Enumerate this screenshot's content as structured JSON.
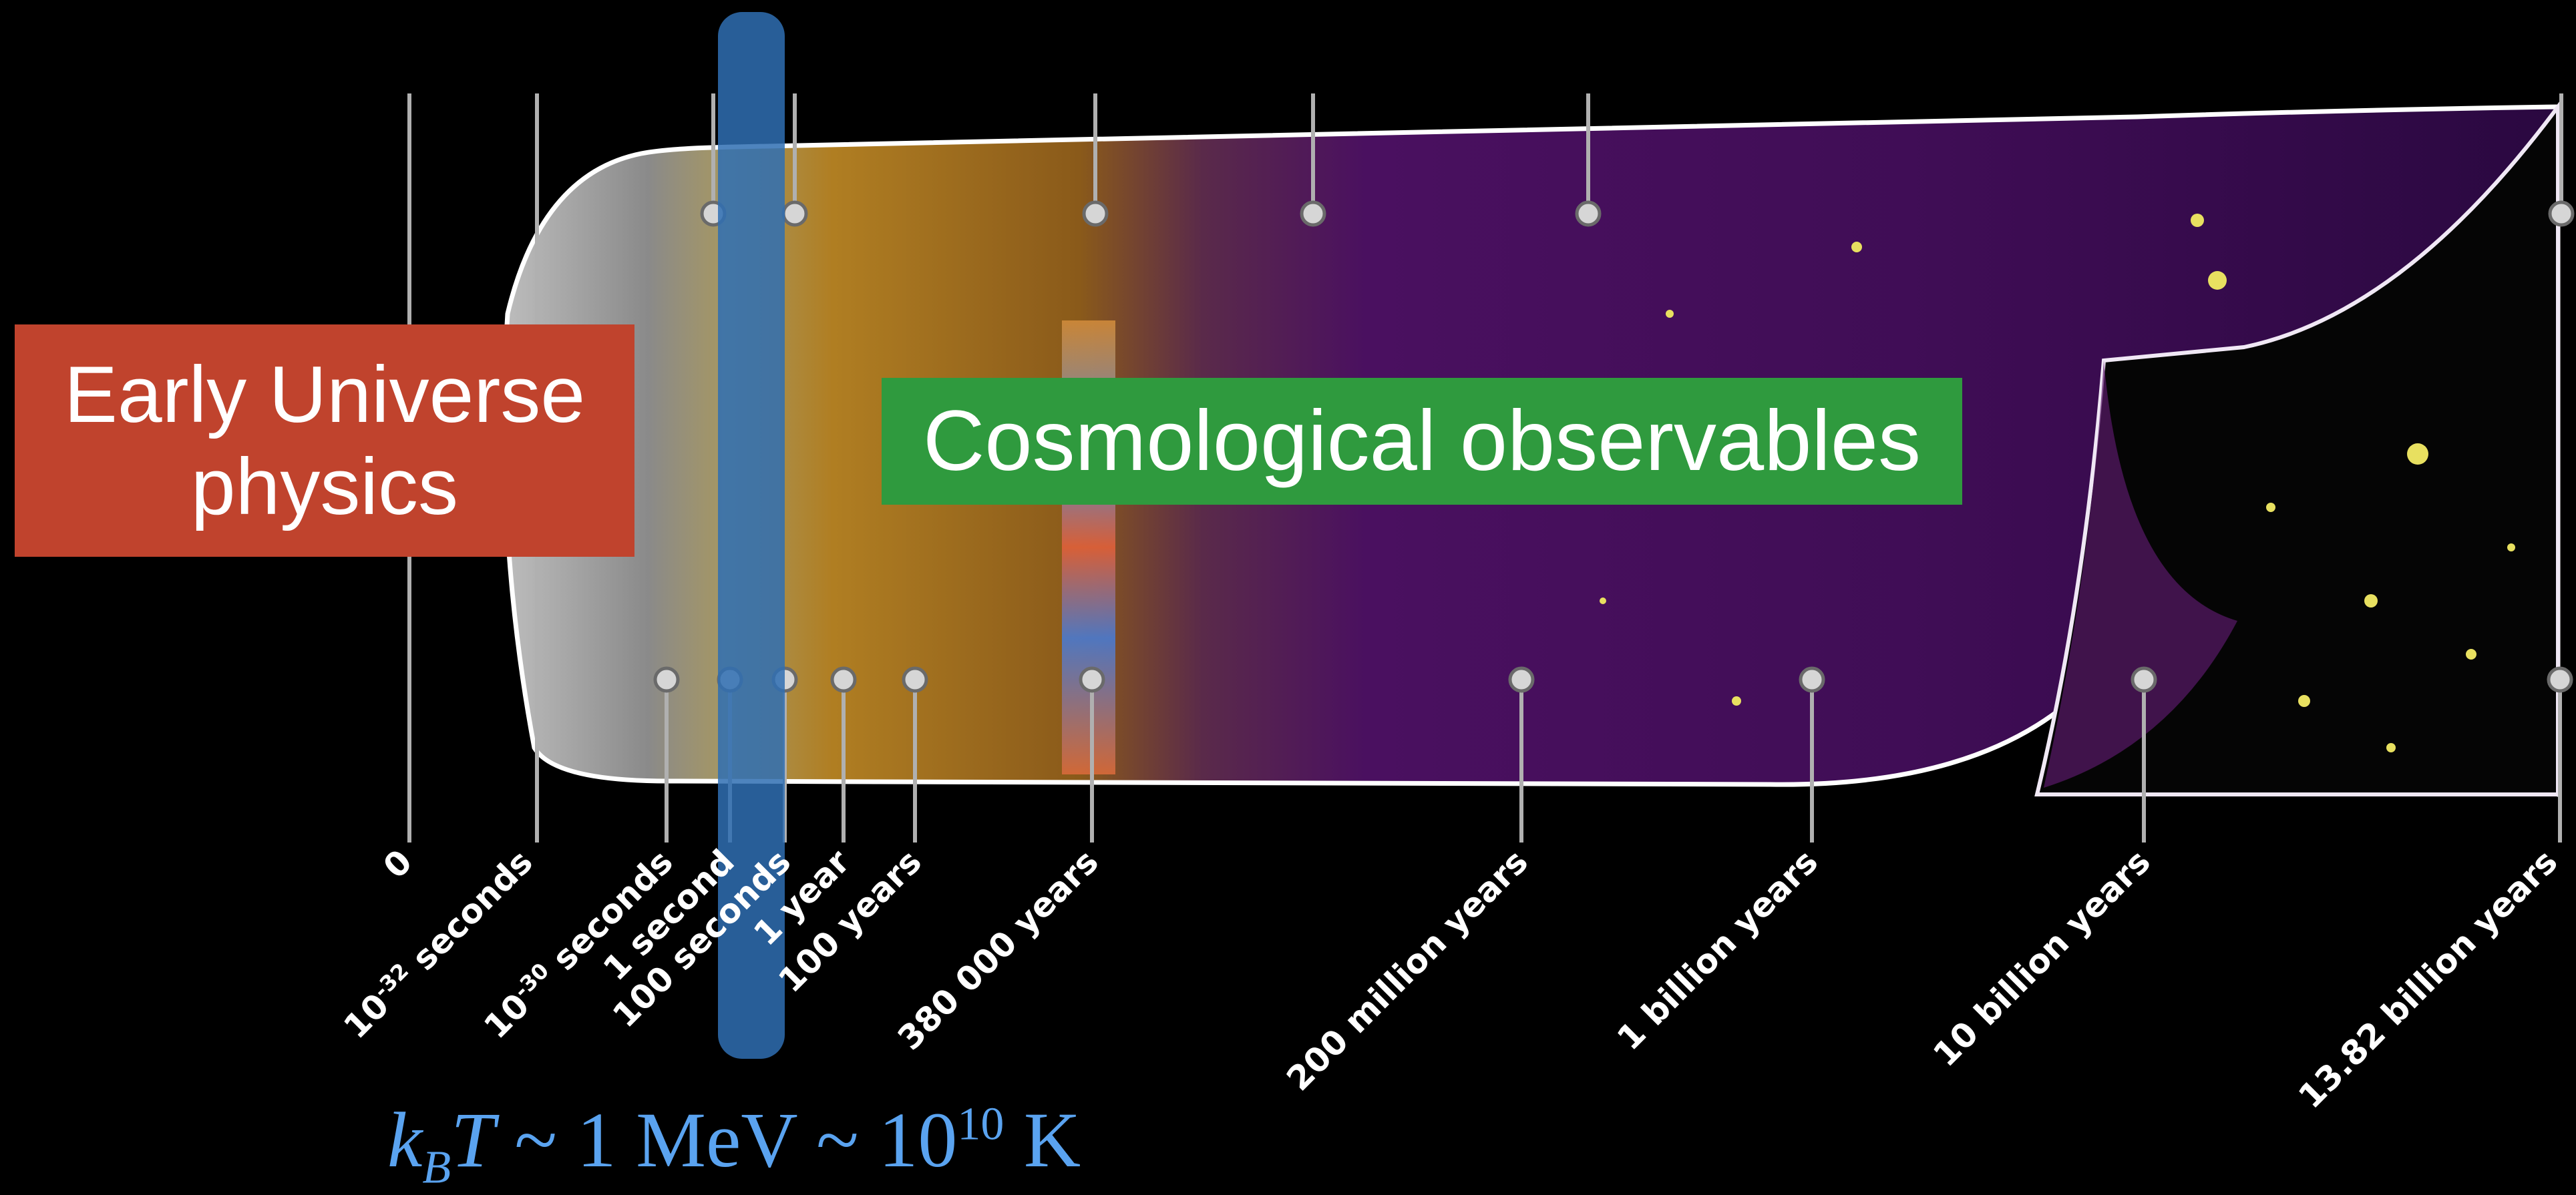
{
  "timeline": {
    "labels": [
      {
        "key": "t0",
        "text": "0"
      },
      {
        "key": "t1",
        "base": "10",
        "exp": "-32",
        "unit": " seconds"
      },
      {
        "key": "t2",
        "base": "10",
        "exp": "-30",
        "unit": " seconds"
      },
      {
        "key": "t3",
        "text": "1 second"
      },
      {
        "key": "t4",
        "text": "100 seconds"
      },
      {
        "key": "t5",
        "text": "1 year"
      },
      {
        "key": "t6",
        "text": "100 years"
      },
      {
        "key": "t7",
        "text": "380 000 years"
      },
      {
        "key": "t8",
        "text": "200 million years"
      },
      {
        "key": "t9",
        "text": "1 billion years"
      },
      {
        "key": "t10",
        "text": "10 billion years"
      },
      {
        "key": "t11",
        "text": "13.82 billion years"
      }
    ]
  },
  "callouts": {
    "early_line1": "Early Universe",
    "early_line2": "physics",
    "cosmo": "Cosmological observables"
  },
  "formula": {
    "k": "k",
    "sub_b": "B",
    "t": "T",
    "sim1": " ~ ",
    "one_mev": "1 MeV",
    "sim2": " ~ ",
    "ten": "10",
    "exp10": "10",
    "kelvin": " K"
  },
  "colors": {
    "band": "#2f6fb3",
    "early_box": "#c0432d",
    "cosmo_box": "#2f9a3e",
    "formula": "#5aa3f0"
  }
}
